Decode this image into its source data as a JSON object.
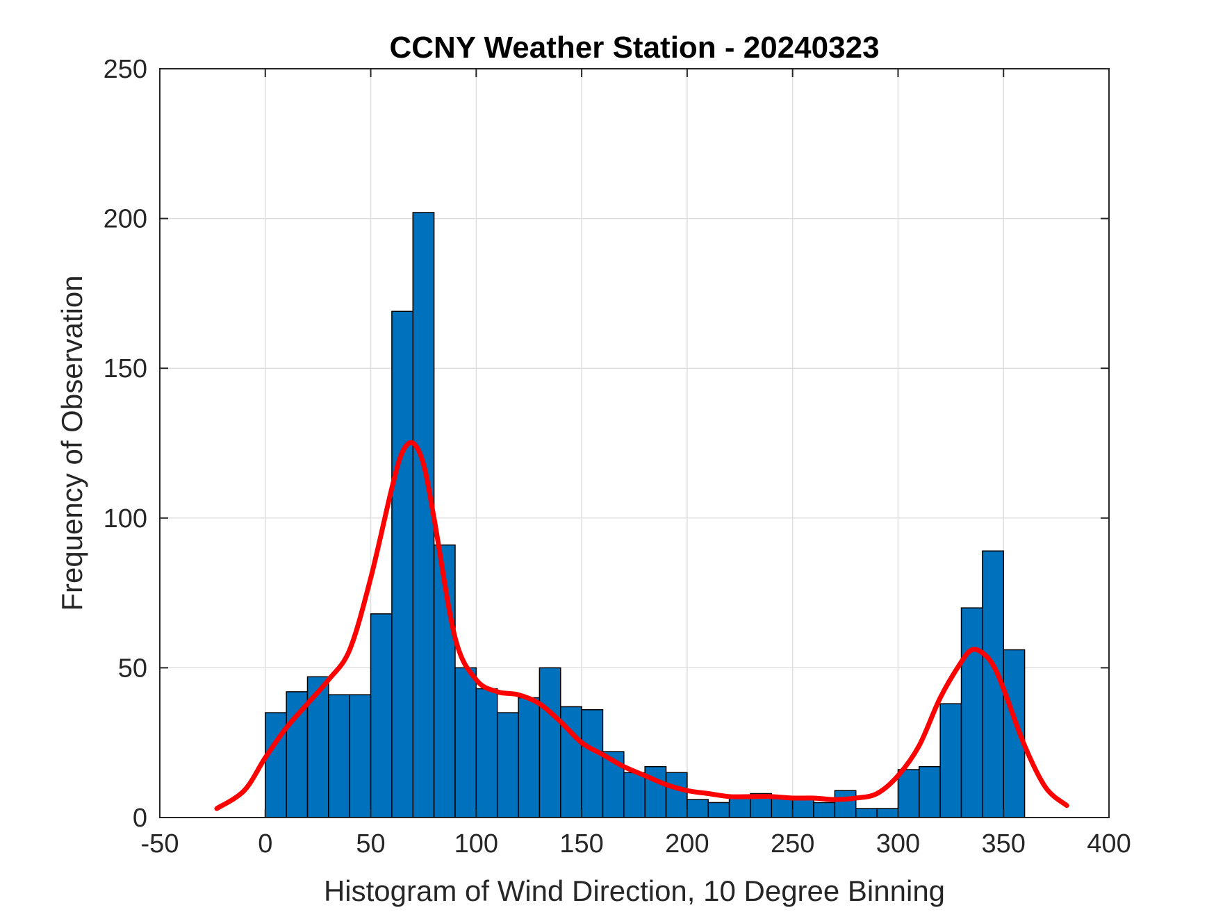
{
  "chart_data": {
    "type": "bar",
    "title": "CCNY Weather Station - 20240323",
    "xlabel": "Histogram of Wind Direction, 10 Degree Binning",
    "ylabel": "Frequency of Observation",
    "xlim": [
      -50,
      400
    ],
    "ylim": [
      0,
      250
    ],
    "xticks": [
      -50,
      0,
      50,
      100,
      150,
      200,
      250,
      300,
      350,
      400
    ],
    "yticks": [
      0,
      50,
      100,
      150,
      200,
      250
    ],
    "grid": true,
    "bin_edges": [
      0,
      10,
      20,
      30,
      40,
      50,
      60,
      70,
      80,
      90,
      100,
      110,
      120,
      130,
      140,
      150,
      160,
      170,
      180,
      190,
      200,
      210,
      220,
      230,
      240,
      250,
      260,
      270,
      280,
      290,
      300,
      310,
      320,
      330,
      340,
      350,
      360
    ],
    "series": [
      {
        "values": [
          35,
          42,
          47,
          41,
          41,
          68,
          169,
          202,
          91,
          50,
          43,
          35,
          40,
          50,
          37,
          36,
          22,
          15,
          17,
          15,
          6,
          5,
          7,
          8,
          7,
          6,
          5,
          9,
          3,
          3,
          16,
          17,
          38,
          70,
          89,
          56
        ],
        "color": "#0072BD"
      },
      {
        "type": "line",
        "color": "#FF0000",
        "x": [
          -23,
          -10,
          0,
          10,
          20,
          30,
          40,
          50,
          60,
          65,
          70,
          75,
          80,
          90,
          100,
          110,
          120,
          130,
          140,
          150,
          160,
          170,
          180,
          190,
          200,
          210,
          220,
          230,
          240,
          250,
          260,
          270,
          280,
          290,
          300,
          310,
          320,
          330,
          335,
          340,
          345,
          350,
          360,
          370,
          380
        ],
        "y": [
          3,
          9,
          20,
          30,
          38,
          46,
          56,
          80,
          110,
          122,
          125,
          118,
          100,
          60,
          46,
          42,
          41,
          38,
          32,
          25,
          21,
          17,
          14,
          11,
          9,
          8,
          7,
          7,
          7,
          6.5,
          6.5,
          6,
          6.5,
          8,
          14,
          24,
          40,
          52,
          56,
          55,
          51,
          43,
          24,
          10,
          4
        ]
      }
    ]
  }
}
